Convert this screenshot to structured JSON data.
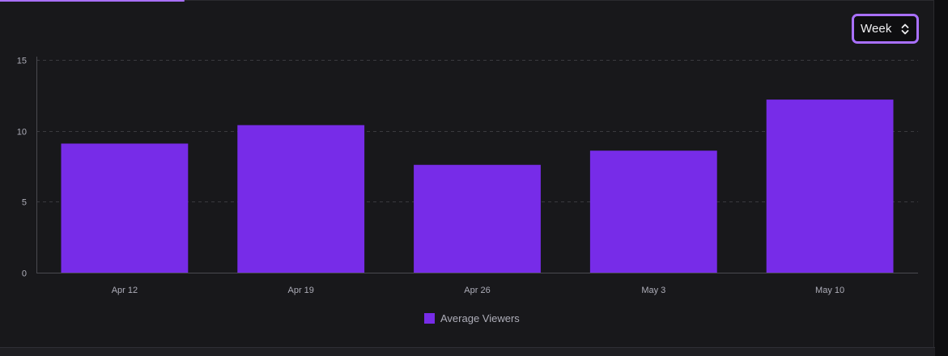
{
  "range_selector": {
    "selected": "Week",
    "icon": "chevron-up-down-icon"
  },
  "colors": {
    "bar": "#772ce8",
    "accent": "#a970ff",
    "background": "#18181b",
    "grid": "#3a3a3f",
    "text": "#adadb8"
  },
  "chart_data": {
    "type": "bar",
    "categories": [
      "Apr 12",
      "Apr 19",
      "Apr 26",
      "May 3",
      "May 10"
    ],
    "series": [
      {
        "name": "Average Viewers",
        "values": [
          9.1,
          10.4,
          7.6,
          8.6,
          12.2
        ]
      }
    ],
    "yticks": [
      0,
      5,
      10,
      15
    ],
    "ylim": [
      0,
      15
    ],
    "grid": true,
    "legend": "bottom-center"
  }
}
